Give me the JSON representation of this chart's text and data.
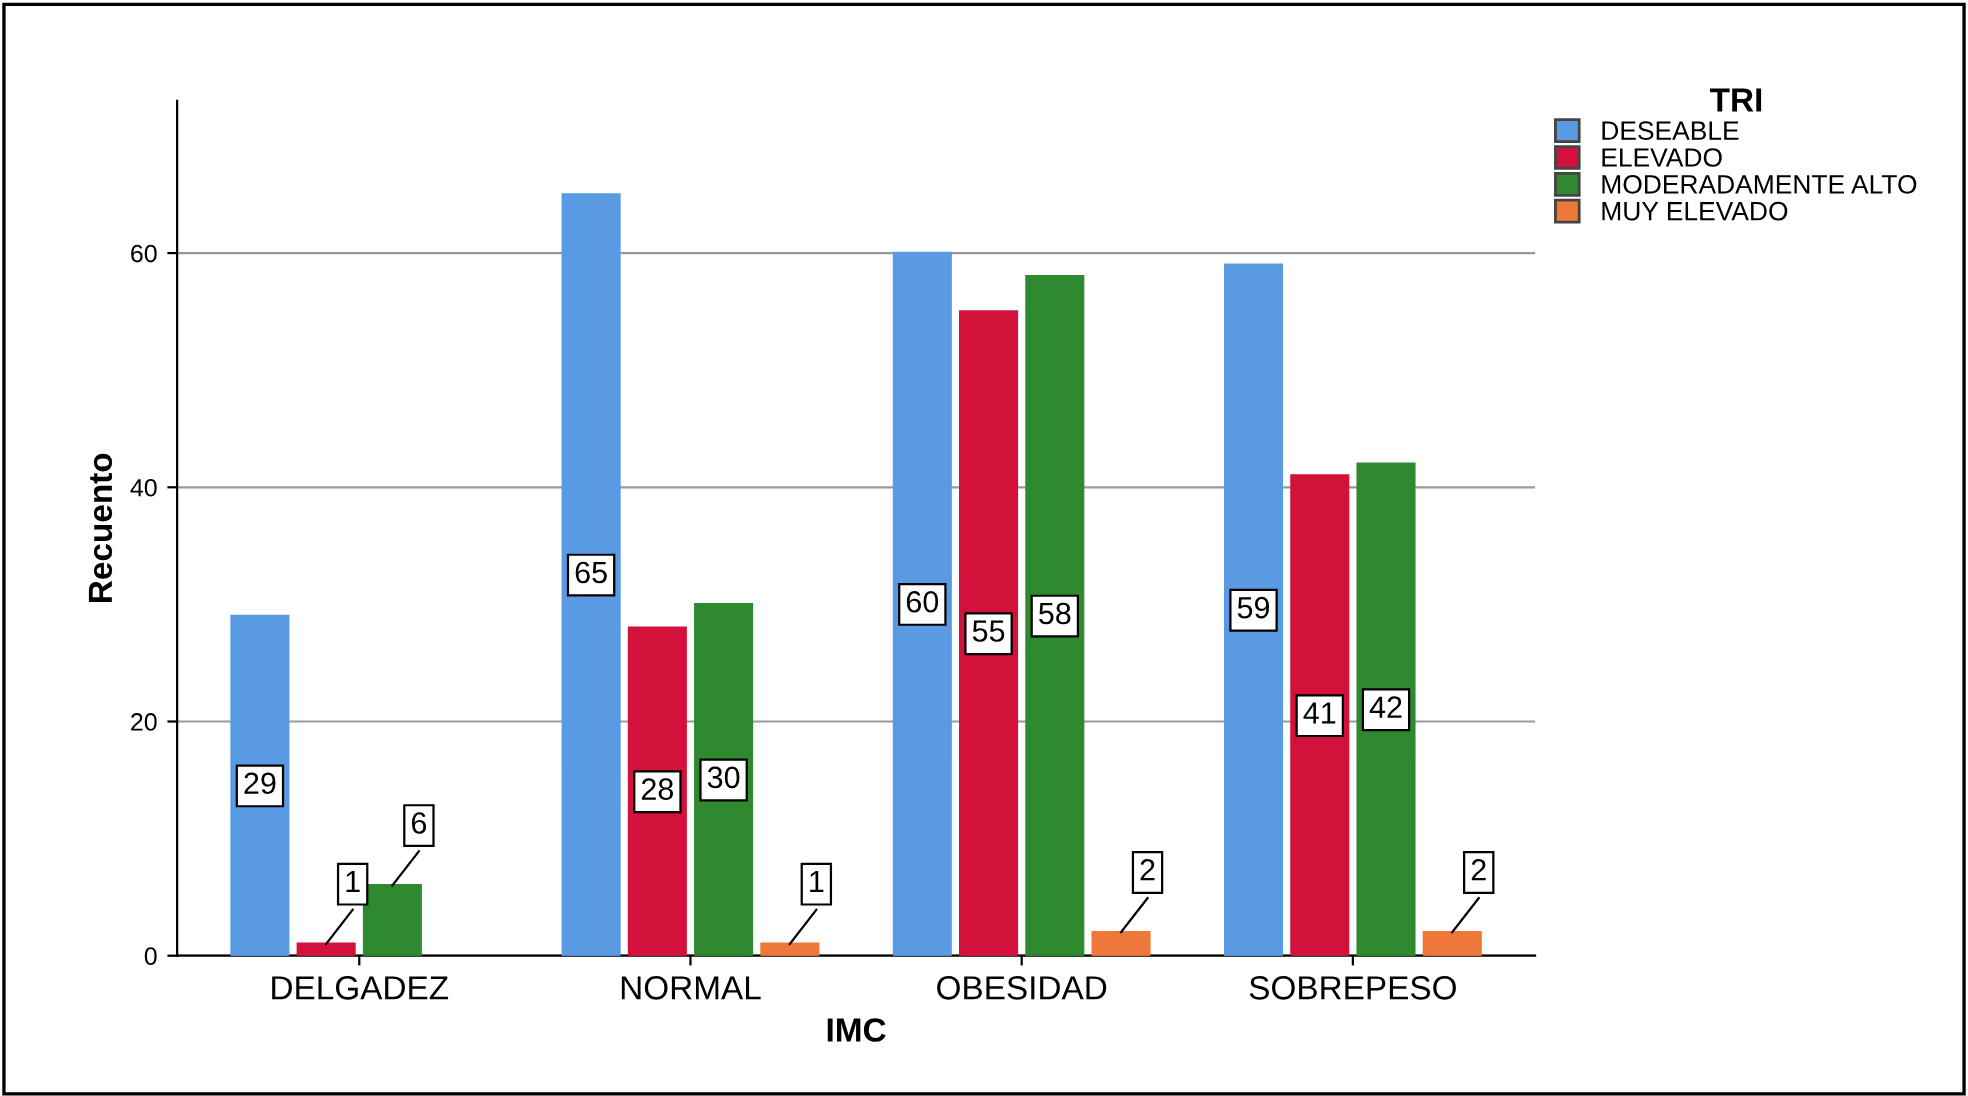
{
  "chart_data": {
    "type": "bar",
    "xlabel": "IMC",
    "ylabel": "Recuento",
    "legend_title": "TRI",
    "categories": [
      "DELGADEZ",
      "NORMAL",
      "OBESIDAD",
      "SOBREPESO"
    ],
    "series": [
      {
        "name": "DESEABLE",
        "color": "#5a9ae2",
        "values": [
          29,
          65,
          60,
          59
        ]
      },
      {
        "name": "ELEVADO",
        "color": "#d3123c",
        "values": [
          1,
          28,
          55,
          41
        ]
      },
      {
        "name": "MODERADAMENTE ALTO",
        "color": "#2f8a2f",
        "values": [
          6,
          30,
          58,
          42
        ]
      },
      {
        "name": "MUY ELEVADO",
        "color": "#f0773a",
        "values": [
          null,
          1,
          2,
          2
        ]
      }
    ],
    "ylim": [
      0,
      73
    ],
    "yticks": [
      0,
      20,
      40,
      60
    ],
    "grid": "y",
    "legend": "top right",
    "data_labels": true
  }
}
